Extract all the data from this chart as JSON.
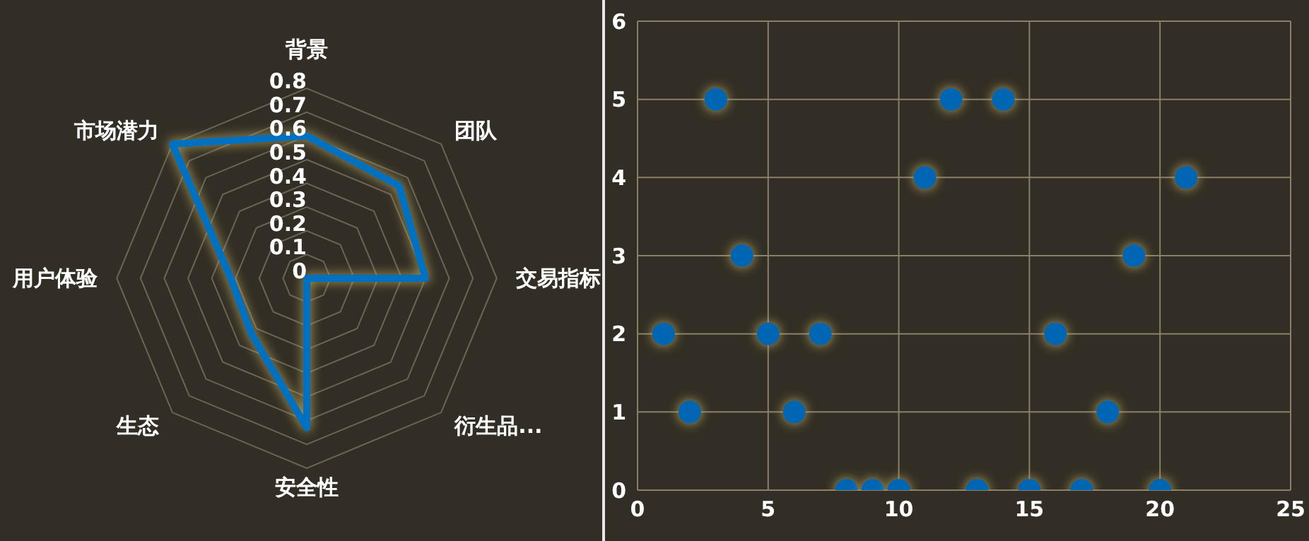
{
  "chart_data": [
    {
      "type": "radar",
      "categories": [
        "背景",
        "团队",
        "交易指标",
        "衍生品...",
        "安全性",
        "生态",
        "用户体验",
        "市场潜力"
      ],
      "series": [
        {
          "color": "#0070c0",
          "values": [
            0.6,
            0.55,
            0.5,
            0,
            0.63,
            0.33,
            0.32,
            0.8
          ]
        }
      ],
      "ylim": [
        0,
        0.8
      ],
      "yticks": [
        0,
        0.1,
        0.2,
        0.3,
        0.4,
        0.5,
        0.6,
        0.7,
        0.8
      ],
      "grid": true
    },
    {
      "type": "scatter",
      "x": [
        1,
        2,
        3,
        4,
        5,
        6,
        7,
        8,
        9,
        10,
        11,
        12,
        13,
        14,
        15,
        16,
        17,
        18,
        19,
        20,
        21
      ],
      "values": [
        2,
        1,
        5,
        3,
        2,
        1,
        2,
        0,
        0,
        0,
        4,
        5,
        0,
        5,
        0,
        2,
        0,
        1,
        3,
        0,
        4
      ],
      "color": "#0066b3",
      "xlim": [
        0,
        25
      ],
      "xticks": [
        0,
        5,
        10,
        15,
        20,
        25
      ],
      "ylim": [
        0,
        6
      ],
      "yticks": [
        0,
        1,
        2,
        3,
        4,
        5,
        6
      ],
      "grid": true,
      "marker": "circle"
    }
  ]
}
